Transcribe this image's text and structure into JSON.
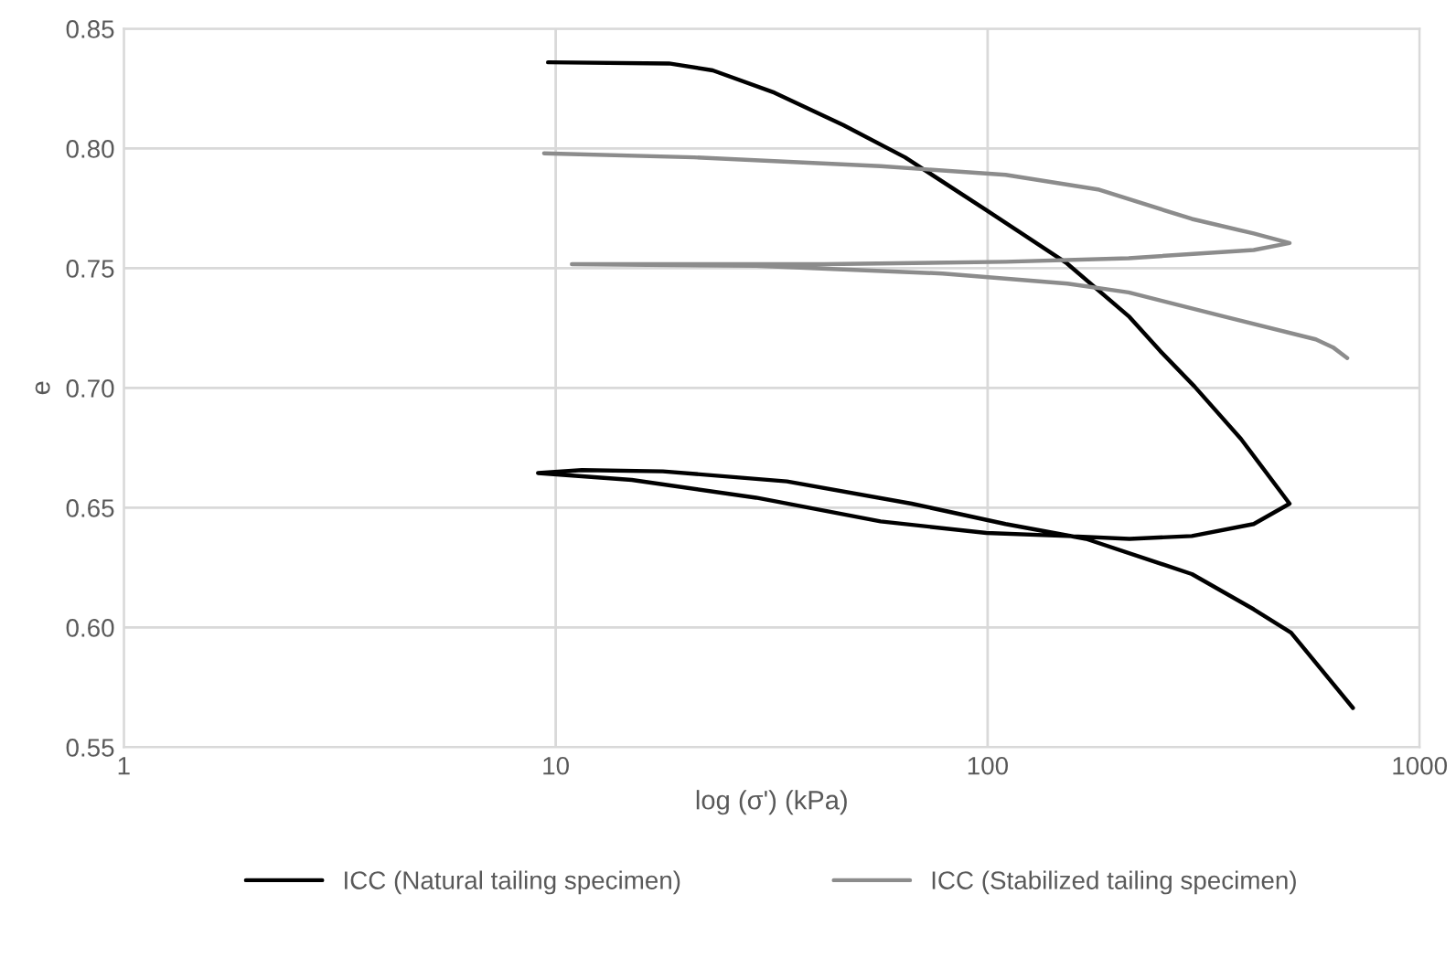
{
  "chart_data": {
    "type": "line",
    "xlabel": "log (σ') (kPa)",
    "ylabel": "e",
    "log": "x",
    "xlim": [
      1,
      1000
    ],
    "xticks": [
      1,
      10,
      100,
      1000
    ],
    "ylim": [
      0.55,
      0.85
    ],
    "yticks": [
      {
        "value": 0.55,
        "label": "0.55"
      },
      {
        "value": 0.6,
        "label": "0.60"
      },
      {
        "value": 0.65,
        "label": "0.65"
      },
      {
        "value": 0.7,
        "label": "0.70"
      },
      {
        "value": 0.75,
        "label": "0.75"
      },
      {
        "value": 0.8,
        "label": "0.80"
      },
      {
        "value": 0.85,
        "label": "0.85"
      }
    ],
    "grid": true,
    "legend": "bottom",
    "marker": "none",
    "line_style": "solid",
    "series": [
      {
        "name": "ICC (Natural tailing specimen)",
        "color": "#000000",
        "x": [
          9.6,
          18.3,
          23.1,
          32.1,
          46.3,
          64.4,
          99.3,
          152.7,
          212,
          251,
          301,
          386,
          500,
          413,
          297,
          213,
          153,
          99.3,
          56.5,
          29.1,
          15.0,
          9.1,
          11.5,
          17.7,
          34.3,
          66.7,
          110,
          169,
          297,
          413,
          504,
          701
        ],
        "values": [
          0.836,
          0.8355,
          0.8326,
          0.8233,
          0.8098,
          0.7963,
          0.7743,
          0.752,
          0.73,
          0.7154,
          0.7007,
          0.6787,
          0.6517,
          0.6432,
          0.6382,
          0.637,
          0.6382,
          0.6395,
          0.6443,
          0.6542,
          0.6616,
          0.6645,
          0.6657,
          0.6652,
          0.661,
          0.6517,
          0.6432,
          0.637,
          0.6223,
          0.6076,
          0.5978,
          0.5664
        ]
      },
      {
        "name": "ICC (Stabilized tailing specimen)",
        "color": "#8c8c8c",
        "x": [
          9.4,
          20.9,
          56.5,
          110,
          180,
          297,
          413,
          500,
          413,
          212,
          110,
          41.9,
          10.9,
          29.1,
          78.7,
          153,
          212,
          350,
          575,
          630,
          680
        ],
        "values": [
          0.798,
          0.7963,
          0.7926,
          0.789,
          0.7829,
          0.7706,
          0.7645,
          0.7605,
          0.7576,
          0.7542,
          0.7527,
          0.7517,
          0.7517,
          0.751,
          0.7478,
          0.7436,
          0.7399,
          0.73,
          0.7203,
          0.717,
          0.7125
        ]
      }
    ]
  }
}
